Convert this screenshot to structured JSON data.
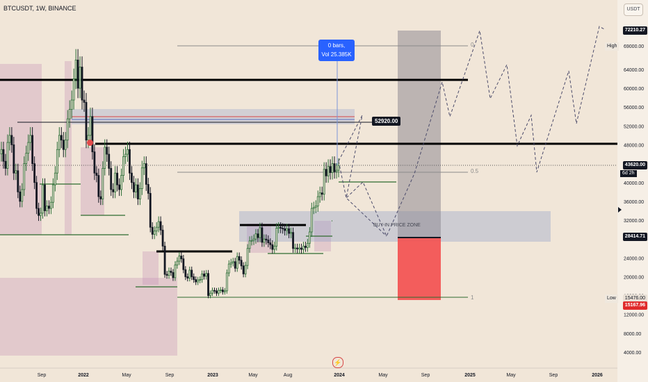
{
  "header": {
    "symbol_line": "BTCUSDT, 1W, BINANCE"
  },
  "currency_button": "USDT",
  "tooltip": {
    "line1": "0 bars,",
    "line2": "Vol 25.385K"
  },
  "labels": {
    "price_52920": "52920.00",
    "zone": "BUY-IN PRICE ZONE",
    "fib_0": "0",
    "fib_05": "0.5",
    "fib_1": "1"
  },
  "right_axis": {
    "tag_high_value": "72210.27",
    "tag_high_label": "High",
    "tag_current": "43620.00",
    "tag_current_sub": "6d 2h",
    "tag_zone": "28414.71",
    "tag_low_label": "Low",
    "tag_low_value": "15476.00",
    "tag_red": "15167.96"
  },
  "chart_data": {
    "type": "candlestick",
    "title": "BTCUSDT, 1W, BINANCE",
    "y_axis": {
      "ticks": [
        4000,
        8000,
        12000,
        16000,
        20000,
        24000,
        28000,
        32000,
        36000,
        40000,
        44000,
        48000,
        52000,
        56000,
        60000,
        64000,
        69000
      ],
      "tick_labels": [
        "4000.00",
        "8000.00",
        "12000.00",
        "16000.00",
        "20000.00",
        "24000.00",
        "28000.00",
        "32000.00",
        "36000.00",
        "40000.00",
        "44000.00",
        "48000.00",
        "52000.00",
        "56000.00",
        "60000.00",
        "64000.00",
        "69000.00"
      ],
      "ylim": [
        1000,
        76000
      ]
    },
    "x_axis": {
      "tick_labels": [
        "Sep",
        "2022",
        "May",
        "Sep",
        "2023",
        "May",
        "Aug",
        "2024",
        "May",
        "Sep",
        "2025",
        "May",
        "Sep",
        "2026"
      ]
    },
    "series": [
      {
        "name": "BTCUSDT",
        "ohlc_closes": [
          47000,
          44500,
          43000,
          48500,
          50000,
          48000,
          42000,
          42500,
          38000,
          36000,
          38500,
          44000,
          46200,
          48500,
          50000,
          44000,
          40000,
          34500,
          33000,
          33500,
          39500,
          34000,
          35000,
          34500,
          35800,
          39500,
          42000,
          47000,
          50000,
          49000,
          47000,
          49000,
          53500,
          55500,
          57500,
          62000,
          66000,
          60000,
          64500,
          57500,
          57000,
          49000,
          50000,
          54000,
          46500,
          42000,
          41500,
          37000,
          36500,
          43000,
          47500,
          46000,
          43000,
          38500,
          38000,
          42000,
          39500,
          38500,
          41500,
          45500,
          46000,
          47000,
          42000,
          40000,
          38000,
          39500,
          36500,
          38700,
          43100,
          44000,
          39600,
          37700,
          30500,
          29000,
          29700,
          30500,
          31700,
          29900,
          26500,
          20500,
          20300,
          21200,
          20900,
          19800,
          22500,
          23300,
          24400,
          23800,
          21500,
          20000,
          19700,
          21400,
          20000,
          19400,
          18900,
          19300,
          19400,
          20600,
          20100,
          20700,
          16000,
          16500,
          17100,
          17000,
          16500,
          17100,
          17200,
          16800,
          17000,
          20800,
          22700,
          23000,
          23200,
          21800,
          24300,
          23500,
          22300,
          20600,
          22400,
          26000,
          27600,
          27700,
          28000,
          29100,
          28300,
          30400,
          27300,
          28000,
          27800,
          27200,
          26800,
          25800,
          26500,
          30300,
          30500,
          30300,
          30200,
          29800,
          30200,
          29200,
          29400,
          26000,
          26100,
          25900,
          26100,
          25800,
          26500,
          26200,
          27100,
          29500,
          34500,
          34700,
          35000,
          37000,
          37800,
          37500,
          42800,
          41400,
          43400,
          42100,
          44000,
          42300,
          42600,
          43620
        ]
      }
    ],
    "projection_path": [
      [
        28000,
        "2024-May"
      ],
      [
        72210,
        "2025"
      ],
      [
        24000,
        "2026"
      ]
    ],
    "levels": [
      {
        "name": "fib 0",
        "value": 69000
      },
      {
        "name": "fib 0.5",
        "value": 42000
      },
      {
        "name": "fib 1",
        "value": 15476
      },
      {
        "name": "resistance",
        "value": 62000
      },
      {
        "name": "support",
        "value": 48000
      },
      {
        "name": "52920",
        "value": 52920
      },
      {
        "name": "buy-in zone top",
        "value": 33700
      },
      {
        "name": "buy-in zone bottom",
        "value": 28414.71
      }
    ]
  }
}
